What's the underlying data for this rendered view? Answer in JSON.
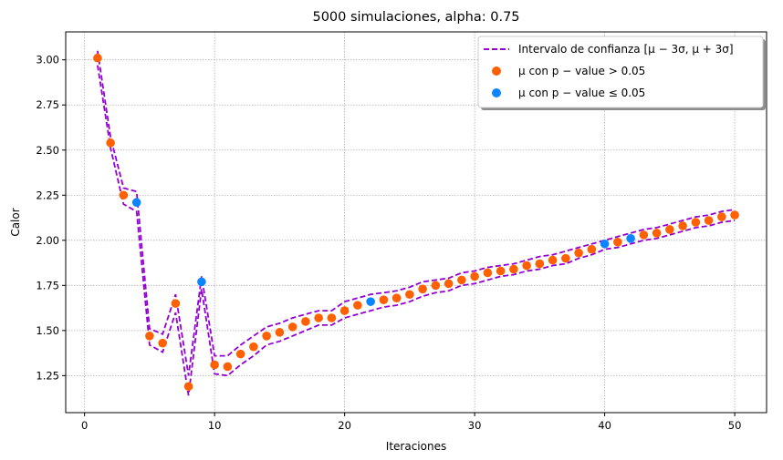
{
  "chart_data": {
    "type": "scatter",
    "title": "5000 simulaciones, alpha: 0.75",
    "xlabel": "Iteraciones",
    "ylabel": "Calor",
    "xlim": [
      -1.45,
      52.45
    ],
    "ylim": [
      1.045,
      3.155
    ],
    "xticks": [
      0,
      10,
      20,
      30,
      40,
      50
    ],
    "yticks": [
      1.25,
      1.5,
      1.75,
      2.0,
      2.25,
      2.5,
      2.75,
      3.0
    ],
    "xtick_labels": [
      "0",
      "10",
      "20",
      "30",
      "40",
      "50"
    ],
    "ytick_labels": [
      "1.25",
      "1.50",
      "1.75",
      "2.00",
      "2.25",
      "2.50",
      "2.75",
      "3.00"
    ],
    "grid": true,
    "legend_position": "top-right",
    "colors": {
      "interval": "#9400d3",
      "not_significant": "#ff6000",
      "significant": "#0a84ff"
    },
    "legend": [
      {
        "label": "Intervalo de confianza [μ − 3σ, μ + 3σ]",
        "kind": "dashed-line",
        "color_key": "interval"
      },
      {
        "label": "μ con p − value > 0.05",
        "kind": "marker",
        "color_key": "not_significant"
      },
      {
        "label": "μ con p − value ≤ 0.05",
        "kind": "marker",
        "color_key": "significant"
      }
    ],
    "x": [
      1,
      2,
      3,
      4,
      5,
      6,
      7,
      8,
      9,
      10,
      11,
      12,
      13,
      14,
      15,
      16,
      17,
      18,
      19,
      20,
      21,
      22,
      23,
      24,
      25,
      26,
      27,
      28,
      29,
      30,
      31,
      32,
      33,
      34,
      35,
      36,
      37,
      38,
      39,
      40,
      41,
      42,
      43,
      44,
      45,
      46,
      47,
      48,
      49,
      50
    ],
    "mu": [
      3.01,
      2.54,
      2.25,
      2.21,
      1.47,
      1.43,
      1.65,
      1.19,
      1.77,
      1.31,
      1.3,
      1.37,
      1.41,
      1.47,
      1.49,
      1.52,
      1.55,
      1.57,
      1.57,
      1.61,
      1.64,
      1.66,
      1.67,
      1.68,
      1.7,
      1.73,
      1.75,
      1.76,
      1.78,
      1.8,
      1.82,
      1.83,
      1.84,
      1.86,
      1.87,
      1.89,
      1.9,
      1.93,
      1.95,
      1.98,
      1.99,
      2.01,
      2.03,
      2.04,
      2.06,
      2.08,
      2.1,
      2.11,
      2.13,
      2.14
    ],
    "upper": [
      3.05,
      2.57,
      2.29,
      2.27,
      1.51,
      1.48,
      1.7,
      1.25,
      1.8,
      1.36,
      1.36,
      1.42,
      1.47,
      1.52,
      1.54,
      1.57,
      1.59,
      1.61,
      1.61,
      1.66,
      1.68,
      1.7,
      1.71,
      1.72,
      1.74,
      1.77,
      1.78,
      1.79,
      1.82,
      1.83,
      1.85,
      1.86,
      1.87,
      1.89,
      1.91,
      1.92,
      1.94,
      1.96,
      1.98,
      2.0,
      2.02,
      2.04,
      2.06,
      2.07,
      2.09,
      2.11,
      2.13,
      2.14,
      2.16,
      2.17
    ],
    "lower": [
      2.97,
      2.51,
      2.2,
      2.16,
      1.42,
      1.38,
      1.6,
      1.14,
      1.73,
      1.26,
      1.25,
      1.31,
      1.36,
      1.42,
      1.44,
      1.47,
      1.5,
      1.53,
      1.53,
      1.57,
      1.59,
      1.61,
      1.63,
      1.64,
      1.66,
      1.69,
      1.71,
      1.72,
      1.75,
      1.76,
      1.78,
      1.8,
      1.81,
      1.83,
      1.84,
      1.86,
      1.87,
      1.9,
      1.92,
      1.95,
      1.96,
      1.98,
      2.0,
      2.01,
      2.03,
      2.05,
      2.07,
      2.08,
      2.1,
      2.11
    ],
    "significant_x": [
      4,
      9,
      22,
      40,
      42
    ],
    "series": [
      {
        "name": "Intervalo de confianza [μ − 3σ, μ + 3σ]",
        "kind": "interval"
      },
      {
        "name": "μ con p − value > 0.05",
        "kind": "points"
      },
      {
        "name": "μ con p − value ≤ 0.05",
        "kind": "points"
      }
    ]
  }
}
